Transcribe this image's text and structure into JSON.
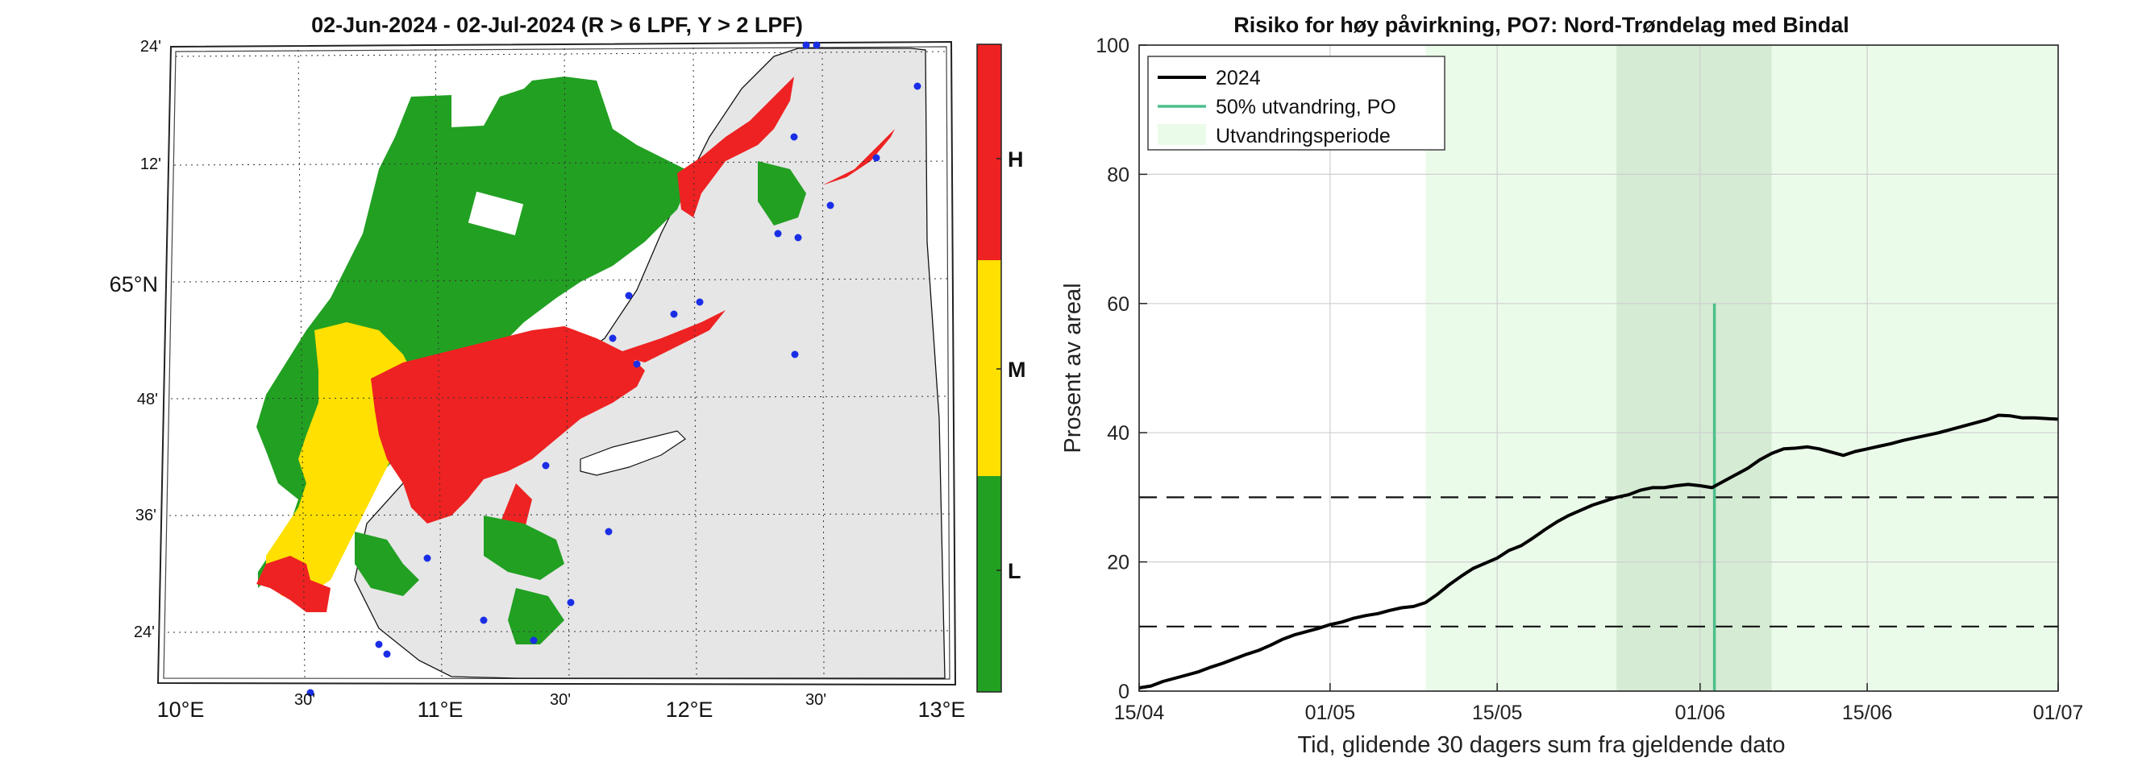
{
  "map_panel": {
    "title": "02-Jun-2024  - 02-Jul-2024  (R > 6 LPF, Y > 2 LPF)",
    "lat_labels": [
      "24'",
      "12'",
      "65°N",
      "48'",
      "36'",
      "24'"
    ],
    "lon_labels": [
      "10°E",
      "30'",
      "11°E",
      "30'",
      "12°E",
      "30'",
      "13°E"
    ],
    "colorbar": {
      "labels": [
        "H",
        "M",
        "L"
      ],
      "colors": {
        "H": "#ee2222",
        "M": "#ffe000",
        "L": "#22a022"
      }
    },
    "colors": {
      "land": "#e6e6e6",
      "sea_red": "#ee2222",
      "sea_yellow": "#ffe000",
      "sea_green": "#22a022",
      "site": "#1a2ee6"
    }
  },
  "chart_data": {
    "type": "line",
    "title": "Risiko for høy påvirkning, PO7: Nord-Trøndelag med Bindal",
    "xlabel": "Tid, glidende 30 dagers sum fra gjeldende dato",
    "ylabel": "Prosent av areal",
    "ylim": [
      0,
      100
    ],
    "xlim_days": [
      0,
      77
    ],
    "x_tick_labels": [
      "15/04",
      "01/05",
      "15/05",
      "01/06",
      "15/06",
      "01/07"
    ],
    "x_tick_days": [
      0,
      16,
      30,
      47,
      61,
      77
    ],
    "y_ticks": [
      0,
      20,
      40,
      60,
      80,
      100
    ],
    "grid": true,
    "legend_position": "top-left",
    "legend": [
      "2024",
      "50% utvandring, PO",
      "Utvandringsperiode"
    ],
    "migration_period_days": [
      24,
      77
    ],
    "migration_core_days": [
      40,
      53
    ],
    "migration_50pct_day": 48.2,
    "migration_50pct_height": 60,
    "threshold_lines": [
      10,
      30
    ],
    "series": [
      {
        "name": "2024",
        "x": [
          0,
          1,
          2,
          3,
          4,
          5,
          6,
          7,
          8,
          9,
          10,
          11,
          12,
          13,
          14,
          15,
          16,
          17,
          18,
          19,
          20,
          21,
          22,
          23,
          24,
          25,
          26,
          27,
          28,
          29,
          30,
          31,
          32,
          33,
          34,
          35,
          36,
          37,
          38,
          39,
          40,
          41,
          42,
          43,
          44,
          45,
          46,
          47,
          48,
          49,
          50,
          51,
          52,
          53,
          54,
          55,
          56,
          57,
          58,
          59,
          60,
          61,
          62,
          63,
          64,
          65,
          66,
          67,
          68,
          69,
          70,
          71,
          72,
          73,
          74,
          75,
          76,
          77
        ],
        "values": [
          0.5,
          0.8,
          1.5,
          2.0,
          2.5,
          3.0,
          3.7,
          4.3,
          5.0,
          5.7,
          6.3,
          7.1,
          8.0,
          8.7,
          9.2,
          9.7,
          10.3,
          10.7,
          11.3,
          11.7,
          12.0,
          12.5,
          12.9,
          13.1,
          13.7,
          15.0,
          16.5,
          17.8,
          19.0,
          19.8,
          20.6,
          21.8,
          22.5,
          23.7,
          25.0,
          26.2,
          27.2,
          28.0,
          28.8,
          29.4,
          30.0,
          30.4,
          31.1,
          31.5,
          31.5,
          31.8,
          32.0,
          31.8,
          31.5,
          32.5,
          33.5,
          34.5,
          35.8,
          36.8,
          37.5,
          37.6,
          37.8,
          37.5,
          37.0,
          36.5,
          37.1,
          37.5,
          37.9,
          38.3,
          38.8,
          39.2,
          39.6,
          40.0,
          40.5,
          41.0,
          41.5,
          42.0,
          42.7,
          42.6,
          42.3,
          42.3,
          42.2,
          42.1
        ]
      }
    ]
  }
}
